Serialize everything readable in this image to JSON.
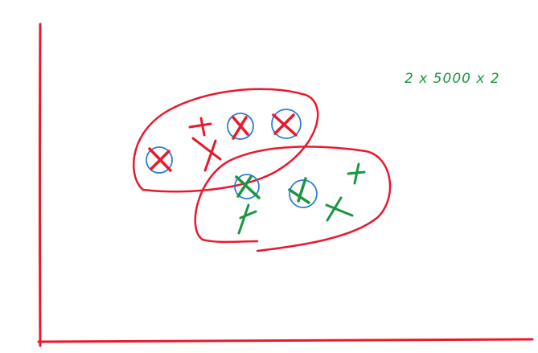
{
  "annotation": {
    "text": "2 x 5000 x 2",
    "color": "#1a9641"
  },
  "colors": {
    "class_a": "#e8192c",
    "class_b": "#1a9641",
    "selection_circle": "#2a7fd4",
    "axes": "#e8192c"
  },
  "class_a_marks": [
    {
      "selected": true
    },
    {
      "selected": false
    },
    {
      "selected": false
    },
    {
      "selected": true
    },
    {
      "selected": true
    }
  ],
  "class_b_marks": [
    {
      "selected": true
    },
    {
      "selected": false
    },
    {
      "selected": true
    },
    {
      "selected": false
    },
    {
      "selected": false
    }
  ]
}
